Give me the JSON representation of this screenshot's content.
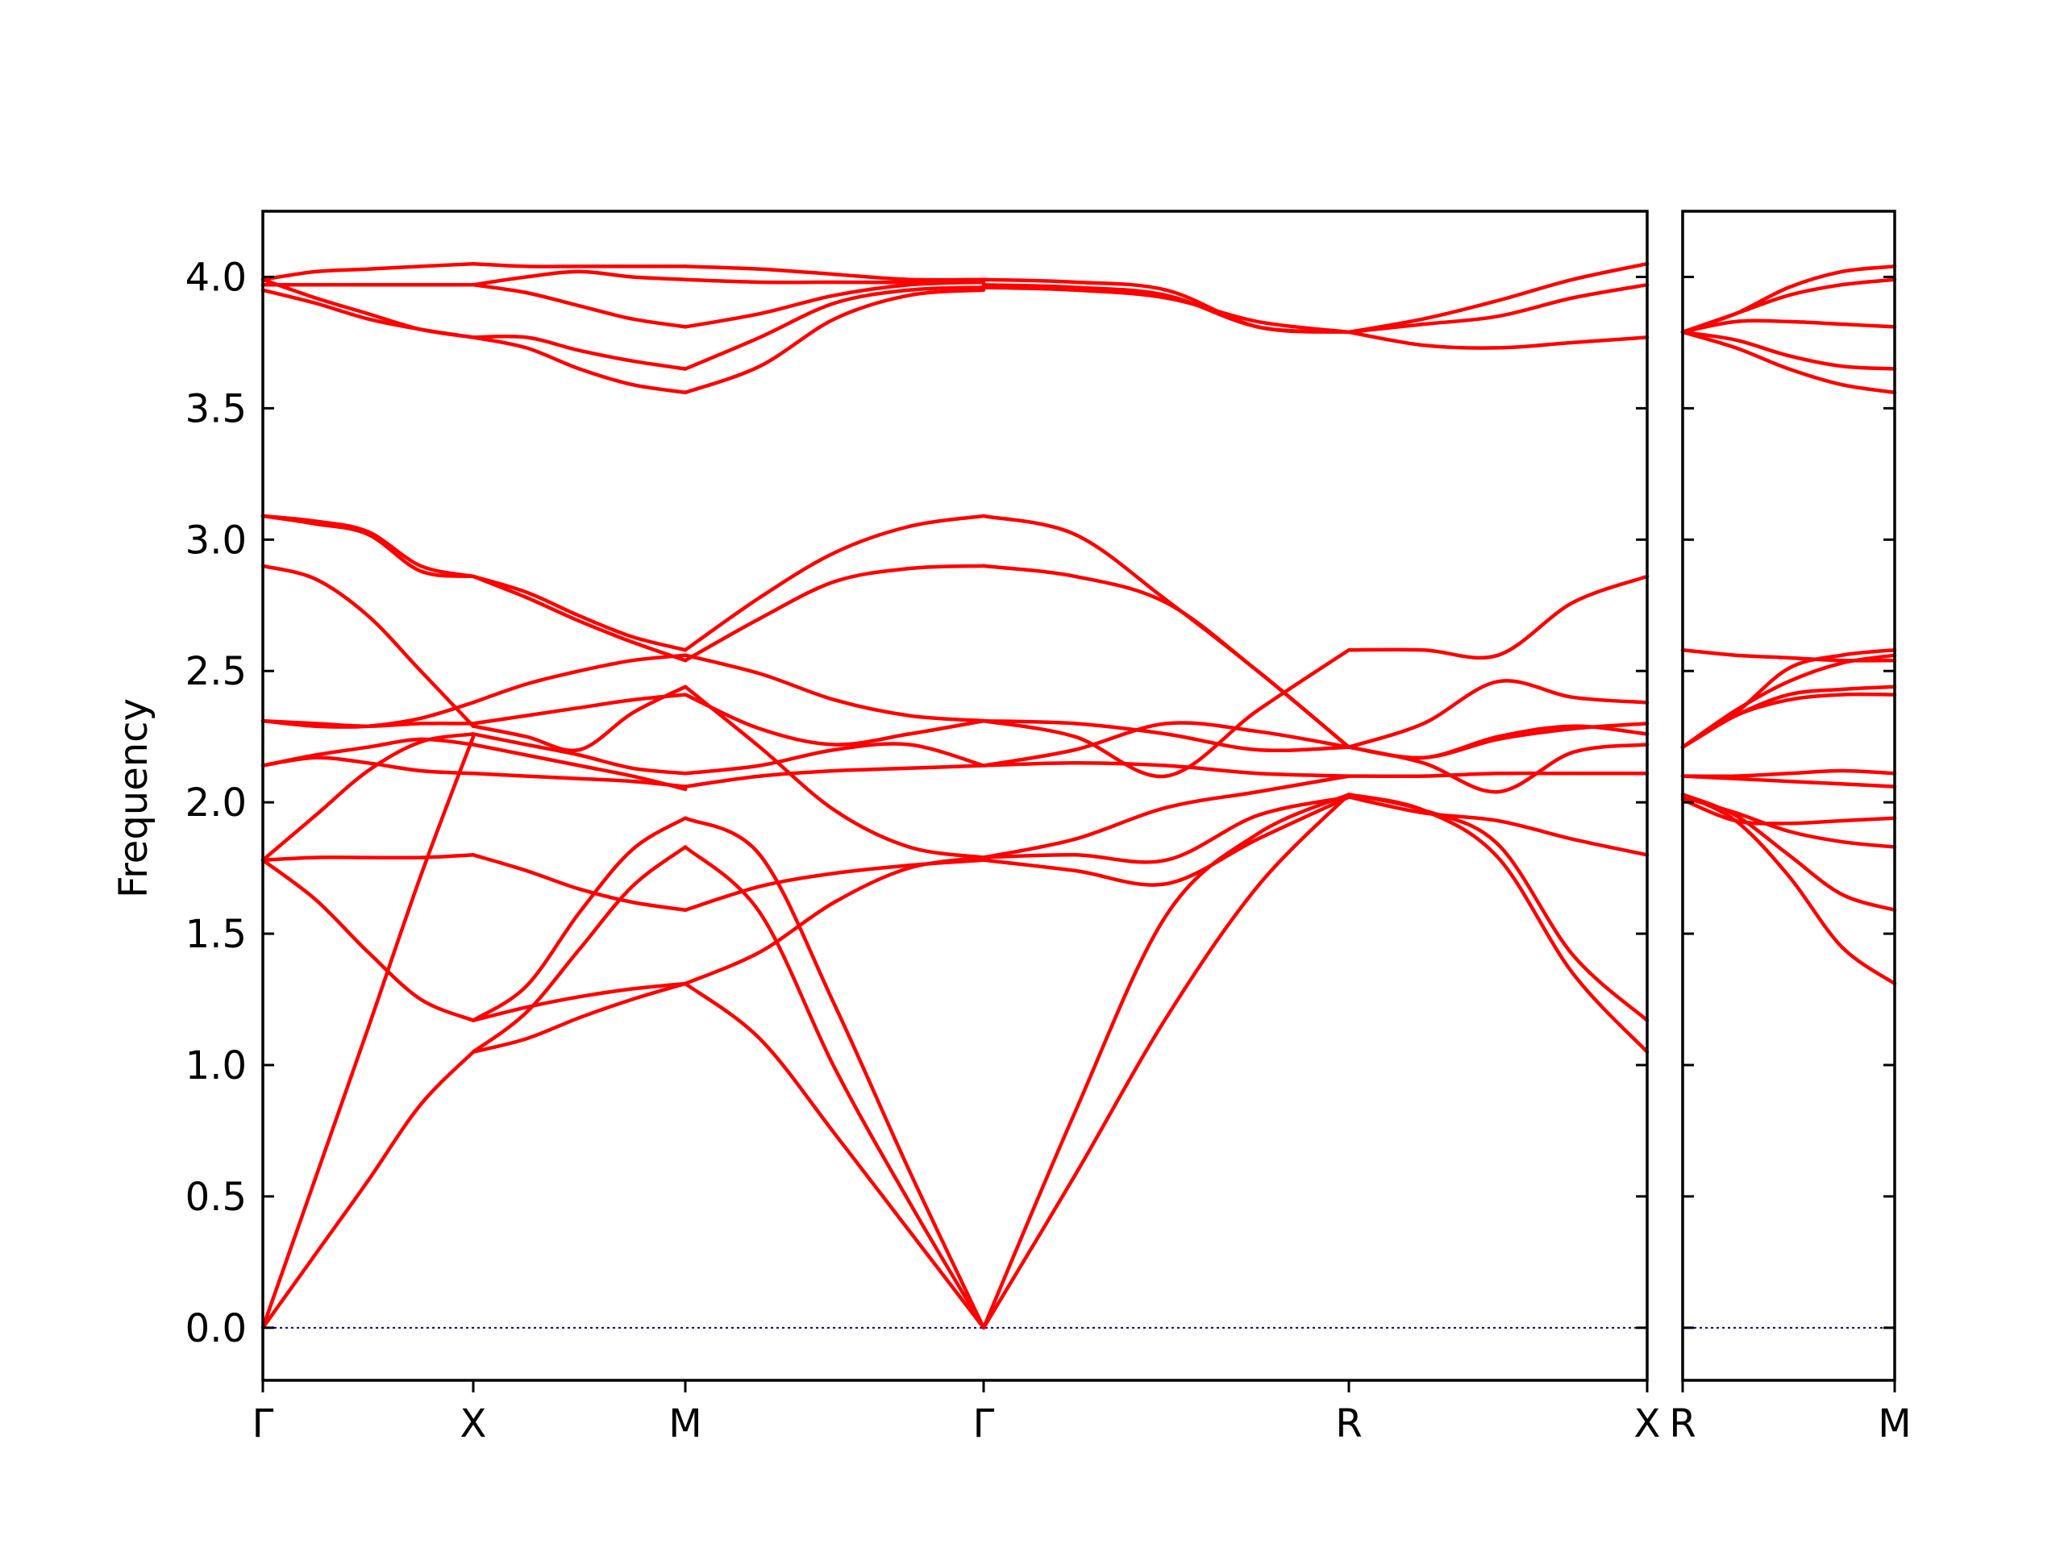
{
  "chart_data": {
    "type": "line",
    "ylabel": "Frequency",
    "xlabel": "",
    "title": "",
    "ylim": [
      -0.2,
      4.25
    ],
    "yticks": [
      0.0,
      0.5,
      1.0,
      1.5,
      2.0,
      2.5,
      3.0,
      3.5,
      4.0
    ],
    "ytick_labels": [
      "0.0",
      "0.5",
      "1.0",
      "1.5",
      "2.0",
      "2.5",
      "3.0",
      "3.5",
      "4.0"
    ],
    "line_color": "#ff0000",
    "zero_line_color": "#00008b",
    "grid": false,
    "panels": [
      {
        "path_labels": [
          "Γ",
          "X",
          "M",
          "Γ",
          "R",
          "X"
        ],
        "segments": [
          {
            "from": "Γ",
            "to": "X",
            "x": [
              0,
              0.25,
              0.5,
              0.75,
              1
            ],
            "bands": [
              [
                0.0,
                0.28,
                0.56,
                0.85,
                1.05
              ],
              [
                0.0,
                0.57,
                1.14,
                1.72,
                2.25
              ],
              [
                1.78,
                1.63,
                1.43,
                1.25,
                1.17
              ],
              [
                1.78,
                1.79,
                1.79,
                1.79,
                1.8
              ],
              [
                1.78,
                1.95,
                2.12,
                2.23,
                2.26
              ],
              [
                2.14,
                2.17,
                2.15,
                2.12,
                2.11
              ],
              [
                2.14,
                2.18,
                2.21,
                2.24,
                2.22
              ],
              [
                2.31,
                2.29,
                2.29,
                2.32,
                2.38
              ],
              [
                2.31,
                2.3,
                2.29,
                2.3,
                2.3
              ],
              [
                2.9,
                2.85,
                2.71,
                2.5,
                2.29
              ],
              [
                3.09,
                3.07,
                3.03,
                2.9,
                2.86
              ],
              [
                3.09,
                3.06,
                3.02,
                2.88,
                2.86
              ],
              [
                3.95,
                3.9,
                3.84,
                3.8,
                3.77
              ],
              [
                3.97,
                3.97,
                3.97,
                3.97,
                3.97
              ],
              [
                3.99,
                3.92,
                3.86,
                3.8,
                3.77
              ],
              [
                3.99,
                4.02,
                4.03,
                4.04,
                4.05
              ]
            ]
          },
          {
            "from": "X",
            "to": "M",
            "x": [
              0,
              0.25,
              0.5,
              0.75,
              1
            ],
            "bands": [
              [
                1.05,
                1.1,
                1.18,
                1.25,
                1.31
              ],
              [
                1.05,
                1.2,
                1.44,
                1.68,
                1.83
              ],
              [
                1.17,
                1.22,
                1.26,
                1.29,
                1.31
              ],
              [
                1.17,
                1.3,
                1.58,
                1.82,
                1.94
              ],
              [
                1.8,
                1.74,
                1.67,
                1.62,
                1.59
              ],
              [
                2.11,
                2.1,
                2.09,
                2.08,
                2.06
              ],
              [
                2.22,
                2.18,
                2.14,
                2.1,
                2.05
              ],
              [
                2.26,
                2.22,
                2.18,
                2.13,
                2.11
              ],
              [
                2.3,
                2.33,
                2.36,
                2.39,
                2.41
              ],
              [
                2.29,
                2.25,
                2.2,
                2.34,
                2.44
              ],
              [
                2.38,
                2.45,
                2.5,
                2.54,
                2.56
              ],
              [
                2.86,
                2.78,
                2.69,
                2.61,
                2.54
              ],
              [
                2.86,
                2.8,
                2.71,
                2.63,
                2.58
              ],
              [
                3.77,
                3.73,
                3.65,
                3.59,
                3.56
              ],
              [
                3.77,
                3.77,
                3.72,
                3.68,
                3.65
              ],
              [
                3.97,
                3.94,
                3.89,
                3.84,
                3.81
              ],
              [
                3.97,
                4.0,
                4.02,
                4.0,
                3.99
              ],
              [
                4.05,
                4.04,
                4.04,
                4.04,
                4.04
              ]
            ]
          },
          {
            "from": "M",
            "to": "Γ",
            "x": [
              0,
              0.25,
              0.5,
              0.75,
              1
            ],
            "bands": [
              [
                1.31,
                1.1,
                0.74,
                0.37,
                0.0
              ],
              [
                1.83,
                1.58,
                0.99,
                0.48,
                0.0
              ],
              [
                1.94,
                1.8,
                1.23,
                0.6,
                0.0
              ],
              [
                1.59,
                1.68,
                1.73,
                1.76,
                1.78
              ],
              [
                1.31,
                1.43,
                1.62,
                1.75,
                1.79
              ],
              [
                2.06,
                2.1,
                2.12,
                2.13,
                2.14
              ],
              [
                2.11,
                2.14,
                2.2,
                2.22,
                2.14
              ],
              [
                2.41,
                2.28,
                2.22,
                2.26,
                2.31
              ],
              [
                2.44,
                2.21,
                1.97,
                1.83,
                1.79
              ],
              [
                2.56,
                2.49,
                2.39,
                2.33,
                2.31
              ],
              [
                2.54,
                2.7,
                2.84,
                2.89,
                2.9
              ],
              [
                2.58,
                2.78,
                2.95,
                3.05,
                3.09
              ],
              [
                3.56,
                3.66,
                3.84,
                3.93,
                3.95
              ],
              [
                3.65,
                3.77,
                3.9,
                3.95,
                3.96
              ],
              [
                3.81,
                3.86,
                3.93,
                3.97,
                3.98
              ],
              [
                3.99,
                3.98,
                3.98,
                3.98,
                3.99
              ],
              [
                4.04,
                4.03,
                4.01,
                3.99,
                3.99
              ]
            ]
          },
          {
            "from": "Γ",
            "to": "R",
            "x": [
              0,
              0.25,
              0.5,
              0.75,
              1
            ],
            "bands": [
              [
                0.0,
                0.58,
                1.18,
                1.68,
                2.03
              ],
              [
                0.0,
                0.82,
                1.57,
                1.88,
                2.03
              ],
              [
                1.78,
                1.74,
                1.69,
                1.86,
                2.02
              ],
              [
                1.79,
                1.8,
                1.78,
                1.95,
                2.02
              ],
              [
                1.79,
                1.86,
                1.98,
                2.04,
                2.1
              ],
              [
                2.14,
                2.15,
                2.14,
                2.11,
                2.1
              ],
              [
                2.14,
                2.2,
                2.3,
                2.27,
                2.21
              ],
              [
                2.31,
                2.3,
                2.26,
                2.2,
                2.21
              ],
              [
                2.31,
                2.25,
                2.1,
                2.35,
                2.58
              ],
              [
                2.9,
                2.86,
                2.76,
                2.5,
                2.21
              ],
              [
                3.09,
                3.02,
                2.77,
                2.5,
                2.21
              ],
              [
                3.96,
                3.95,
                3.92,
                3.83,
                3.79
              ],
              [
                3.97,
                3.96,
                3.93,
                3.81,
                3.79
              ],
              [
                3.99,
                3.98,
                3.95,
                3.81,
                3.79
              ]
            ]
          },
          {
            "from": "R",
            "to": "X",
            "x": [
              0,
              0.25,
              0.5,
              0.75,
              1
            ],
            "bands": [
              [
                2.03,
                1.97,
                1.79,
                1.35,
                1.05
              ],
              [
                2.03,
                1.97,
                1.84,
                1.42,
                1.17
              ],
              [
                2.02,
                1.96,
                1.93,
                1.86,
                1.8
              ],
              [
                2.1,
                2.1,
                2.11,
                2.11,
                2.11
              ],
              [
                2.21,
                2.3,
                2.46,
                2.4,
                2.38
              ],
              [
                2.21,
                2.15,
                2.04,
                2.19,
                2.22
              ],
              [
                2.21,
                2.17,
                2.25,
                2.29,
                2.26
              ],
              [
                2.21,
                2.17,
                2.24,
                2.28,
                2.3
              ],
              [
                2.58,
                2.58,
                2.56,
                2.76,
                2.86
              ],
              [
                3.79,
                3.84,
                3.91,
                3.99,
                4.05
              ],
              [
                3.79,
                3.82,
                3.85,
                3.92,
                3.97
              ],
              [
                3.79,
                3.74,
                3.73,
                3.75,
                3.77
              ]
            ]
          }
        ]
      },
      {
        "path_labels": [
          "R",
          "M"
        ],
        "segments": [
          {
            "from": "R",
            "to": "M",
            "x": [
              0,
              0.25,
              0.5,
              0.75,
              1
            ],
            "bands": [
              [
                2.03,
                1.93,
                1.72,
                1.45,
                1.31
              ],
              [
                2.03,
                1.95,
                1.8,
                1.65,
                1.59
              ],
              [
                2.02,
                1.96,
                1.89,
                1.85,
                1.83
              ],
              [
                2.01,
                1.93,
                1.92,
                1.93,
                1.94
              ],
              [
                2.1,
                2.09,
                2.08,
                2.07,
                2.06
              ],
              [
                2.1,
                2.1,
                2.11,
                2.12,
                2.11
              ],
              [
                2.21,
                2.33,
                2.39,
                2.41,
                2.41
              ],
              [
                2.21,
                2.33,
                2.41,
                2.43,
                2.44
              ],
              [
                2.21,
                2.35,
                2.46,
                2.53,
                2.56
              ],
              [
                2.21,
                2.34,
                2.51,
                2.56,
                2.58
              ],
              [
                2.58,
                2.56,
                2.55,
                2.54,
                2.54
              ],
              [
                3.79,
                3.73,
                3.65,
                3.59,
                3.56
              ],
              [
                3.79,
                3.76,
                3.7,
                3.66,
                3.65
              ],
              [
                3.79,
                3.83,
                3.83,
                3.82,
                3.81
              ],
              [
                3.79,
                3.86,
                3.93,
                3.97,
                3.99
              ],
              [
                3.79,
                3.86,
                3.96,
                4.02,
                4.04
              ]
            ]
          }
        ]
      }
    ]
  }
}
